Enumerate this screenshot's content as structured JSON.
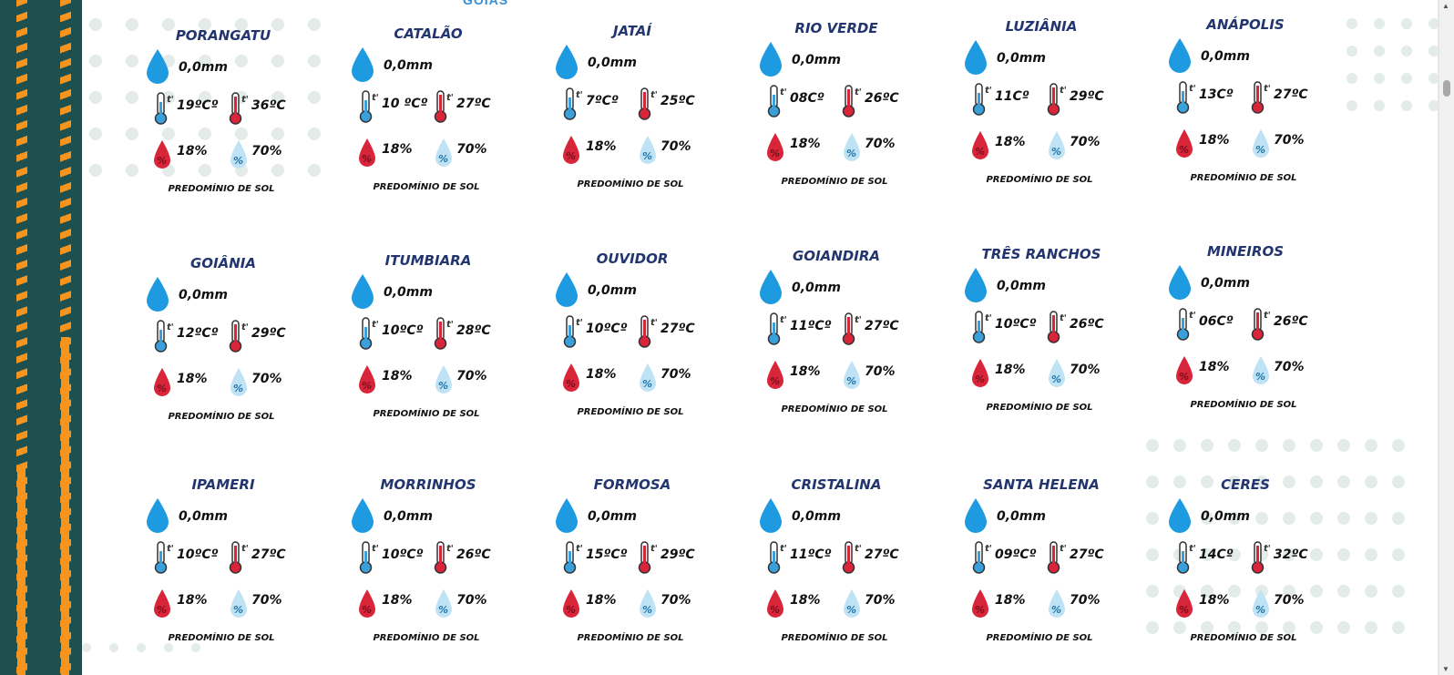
{
  "header_fragment": "GOIÁS",
  "colors": {
    "title": "#22356e",
    "stripe": "#1f5050",
    "accent": "#f7941d",
    "rain": "#1e9be0",
    "hot": "#d9253a",
    "cold": "#3aa0dc",
    "humidity": "#8fcbe9"
  },
  "icons": {
    "rain": "water-drop-icon",
    "tmin": "thermometer-cold-icon",
    "tmax": "thermometer-hot-icon",
    "hmin": "red-humidity-drop-icon",
    "hmax": "blue-humidity-drop-icon"
  },
  "cities": [
    {
      "name": "PORANGATU",
      "rain": "0,0mm",
      "tmin": "19ºCº",
      "tmax": "36ºC",
      "hmin": "18%",
      "hmax": "70%",
      "condition": "PREDOMÍNIO DE SOL"
    },
    {
      "name": "CATALÃO",
      "rain": "0,0mm",
      "tmin": "10 ºCº",
      "tmax": "27ºC",
      "hmin": "18%",
      "hmax": "70%",
      "condition": "PREDOMÍNIO DE SOL"
    },
    {
      "name": "JATAÍ",
      "rain": "0,0mm",
      "tmin": "7ºCº",
      "tmax": "25ºC",
      "hmin": "18%",
      "hmax": "70%",
      "condition": "PREDOMÍNIO DE SOL"
    },
    {
      "name": "RIO VERDE",
      "rain": "0,0mm",
      "tmin": "08Cº",
      "tmax": "26ºC",
      "hmin": "18%",
      "hmax": "70%",
      "condition": "PREDOMÍNIO DE SOL"
    },
    {
      "name": "LUZIÂNIA",
      "rain": "0,0mm",
      "tmin": "11Cº",
      "tmax": "29ºC",
      "hmin": "18%",
      "hmax": "70%",
      "condition": "PREDOMÍNIO DE SOL"
    },
    {
      "name": "ANÁPOLIS",
      "rain": "0,0mm",
      "tmin": "13Cº",
      "tmax": "27ºC",
      "hmin": "18%",
      "hmax": "70%",
      "condition": "PREDOMÍNIO DE SOL"
    },
    {
      "name": "GOIÂNIA",
      "rain": "0,0mm",
      "tmin": "12ºCº",
      "tmax": "29ºC",
      "hmin": "18%",
      "hmax": "70%",
      "condition": "PREDOMÍNIO DE SOL"
    },
    {
      "name": "ITUMBIARA",
      "rain": "0,0mm",
      "tmin": "10ºCº",
      "tmax": "28ºC",
      "hmin": "18%",
      "hmax": "70%",
      "condition": "PREDOMÍNIO DE SOL"
    },
    {
      "name": "OUVIDOR",
      "rain": "0,0mm",
      "tmin": "10ºCº",
      "tmax": "27ºC",
      "hmin": "18%",
      "hmax": "70%",
      "condition": "PREDOMÍNIO DE SOL"
    },
    {
      "name": "GOIANDIRA",
      "rain": "0,0mm",
      "tmin": "11ºCº",
      "tmax": "27ºC",
      "hmin": "18%",
      "hmax": "70%",
      "condition": "PREDOMÍNIO DE SOL"
    },
    {
      "name": "TRÊS RANCHOS",
      "rain": "0,0mm",
      "tmin": "10ºCº",
      "tmax": "26ºC",
      "hmin": "18%",
      "hmax": "70%",
      "condition": "PREDOMÍNIO DE SOL"
    },
    {
      "name": "MINEIROS",
      "rain": "0,0mm",
      "tmin": "06Cº",
      "tmax": "26ºC",
      "hmin": "18%",
      "hmax": "70%",
      "condition": "PREDOMÍNIO DE SOL"
    },
    {
      "name": "IPAMERI",
      "rain": "0,0mm",
      "tmin": "10ºCº",
      "tmax": "27ºC",
      "hmin": "18%",
      "hmax": "70%",
      "condition": "PREDOMÍNIO DE SOL"
    },
    {
      "name": "MORRINHOS",
      "rain": "0,0mm",
      "tmin": "10ºCº",
      "tmax": "26ºC",
      "hmin": "18%",
      "hmax": "70%",
      "condition": "PREDOMÍNIO DE SOL"
    },
    {
      "name": "FORMOSA",
      "rain": "0,0mm",
      "tmin": "15ºCº",
      "tmax": "29ºC",
      "hmin": "18%",
      "hmax": "70%",
      "condition": "PREDOMÍNIO DE SOL"
    },
    {
      "name": "CRISTALINA",
      "rain": "0,0mm",
      "tmin": "11ºCº",
      "tmax": "27ºC",
      "hmin": "18%",
      "hmax": "70%",
      "condition": "PREDOMÍNIO DE SOL"
    },
    {
      "name": "SANTA HELENA",
      "rain": "0,0mm",
      "tmin": "09ºCº",
      "tmax": "27ºC",
      "hmin": "18%",
      "hmax": "70%",
      "condition": "PREDOMÍNIO DE SOL"
    },
    {
      "name": "CERES",
      "rain": "0,0mm",
      "tmin": "14Cº",
      "tmax": "32ºC",
      "hmin": "18%",
      "hmax": "70%",
      "condition": "PREDOMÍNIO DE SOL"
    }
  ]
}
